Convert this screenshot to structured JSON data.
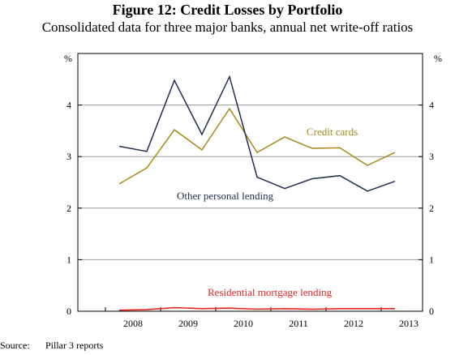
{
  "chart_data": {
    "type": "line",
    "title": "Figure 12: Credit Losses by Portfolio",
    "subtitle": "Consolidated data for three major banks, annual net write-off ratios",
    "ylabel_left": "%",
    "ylabel_right": "%",
    "ylim": [
      0,
      5
    ],
    "yticks": [
      0,
      1,
      2,
      3,
      4
    ],
    "xlim": [
      2007.5,
      2013.75
    ],
    "xticks": [
      "2008",
      "2009",
      "2010",
      "2011",
      "2012",
      "2013"
    ],
    "grid": true,
    "series": [
      {
        "name": "Credit cards",
        "color": "#a8881c",
        "x": [
          2008.25,
          2008.75,
          2009.25,
          2009.75,
          2010.25,
          2010.75,
          2011.25,
          2011.75,
          2012.25,
          2012.75,
          2013.25
        ],
        "y": [
          2.47,
          2.78,
          3.52,
          3.13,
          3.93,
          3.08,
          3.38,
          3.16,
          3.17,
          2.83,
          3.08
        ]
      },
      {
        "name": "Other personal lending",
        "color": "#1f2f4f",
        "x": [
          2008.25,
          2008.75,
          2009.25,
          2009.75,
          2010.25,
          2010.75,
          2011.25,
          2011.75,
          2012.25,
          2012.75,
          2013.25
        ],
        "y": [
          3.2,
          3.1,
          4.48,
          3.43,
          4.55,
          2.6,
          2.38,
          2.57,
          2.63,
          2.33,
          2.52
        ]
      },
      {
        "name": "Residential mortgage lending",
        "color": "#e8251f",
        "x": [
          2008.25,
          2008.75,
          2009.25,
          2009.75,
          2010.25,
          2010.75,
          2011.25,
          2011.75,
          2012.25,
          2012.75,
          2013.25
        ],
        "y": [
          0.02,
          0.03,
          0.07,
          0.05,
          0.06,
          0.04,
          0.05,
          0.04,
          0.05,
          0.05,
          0.05
        ]
      }
    ],
    "annotations": [
      {
        "text": "Credit cards",
        "series": "Credit cards"
      },
      {
        "text": "Other personal lending",
        "series": "Other personal lending"
      },
      {
        "text": "Residential mortgage lending",
        "series": "Residential mortgage lending"
      }
    ]
  },
  "source": {
    "label": "Source:",
    "text": "Pillar 3 reports"
  }
}
